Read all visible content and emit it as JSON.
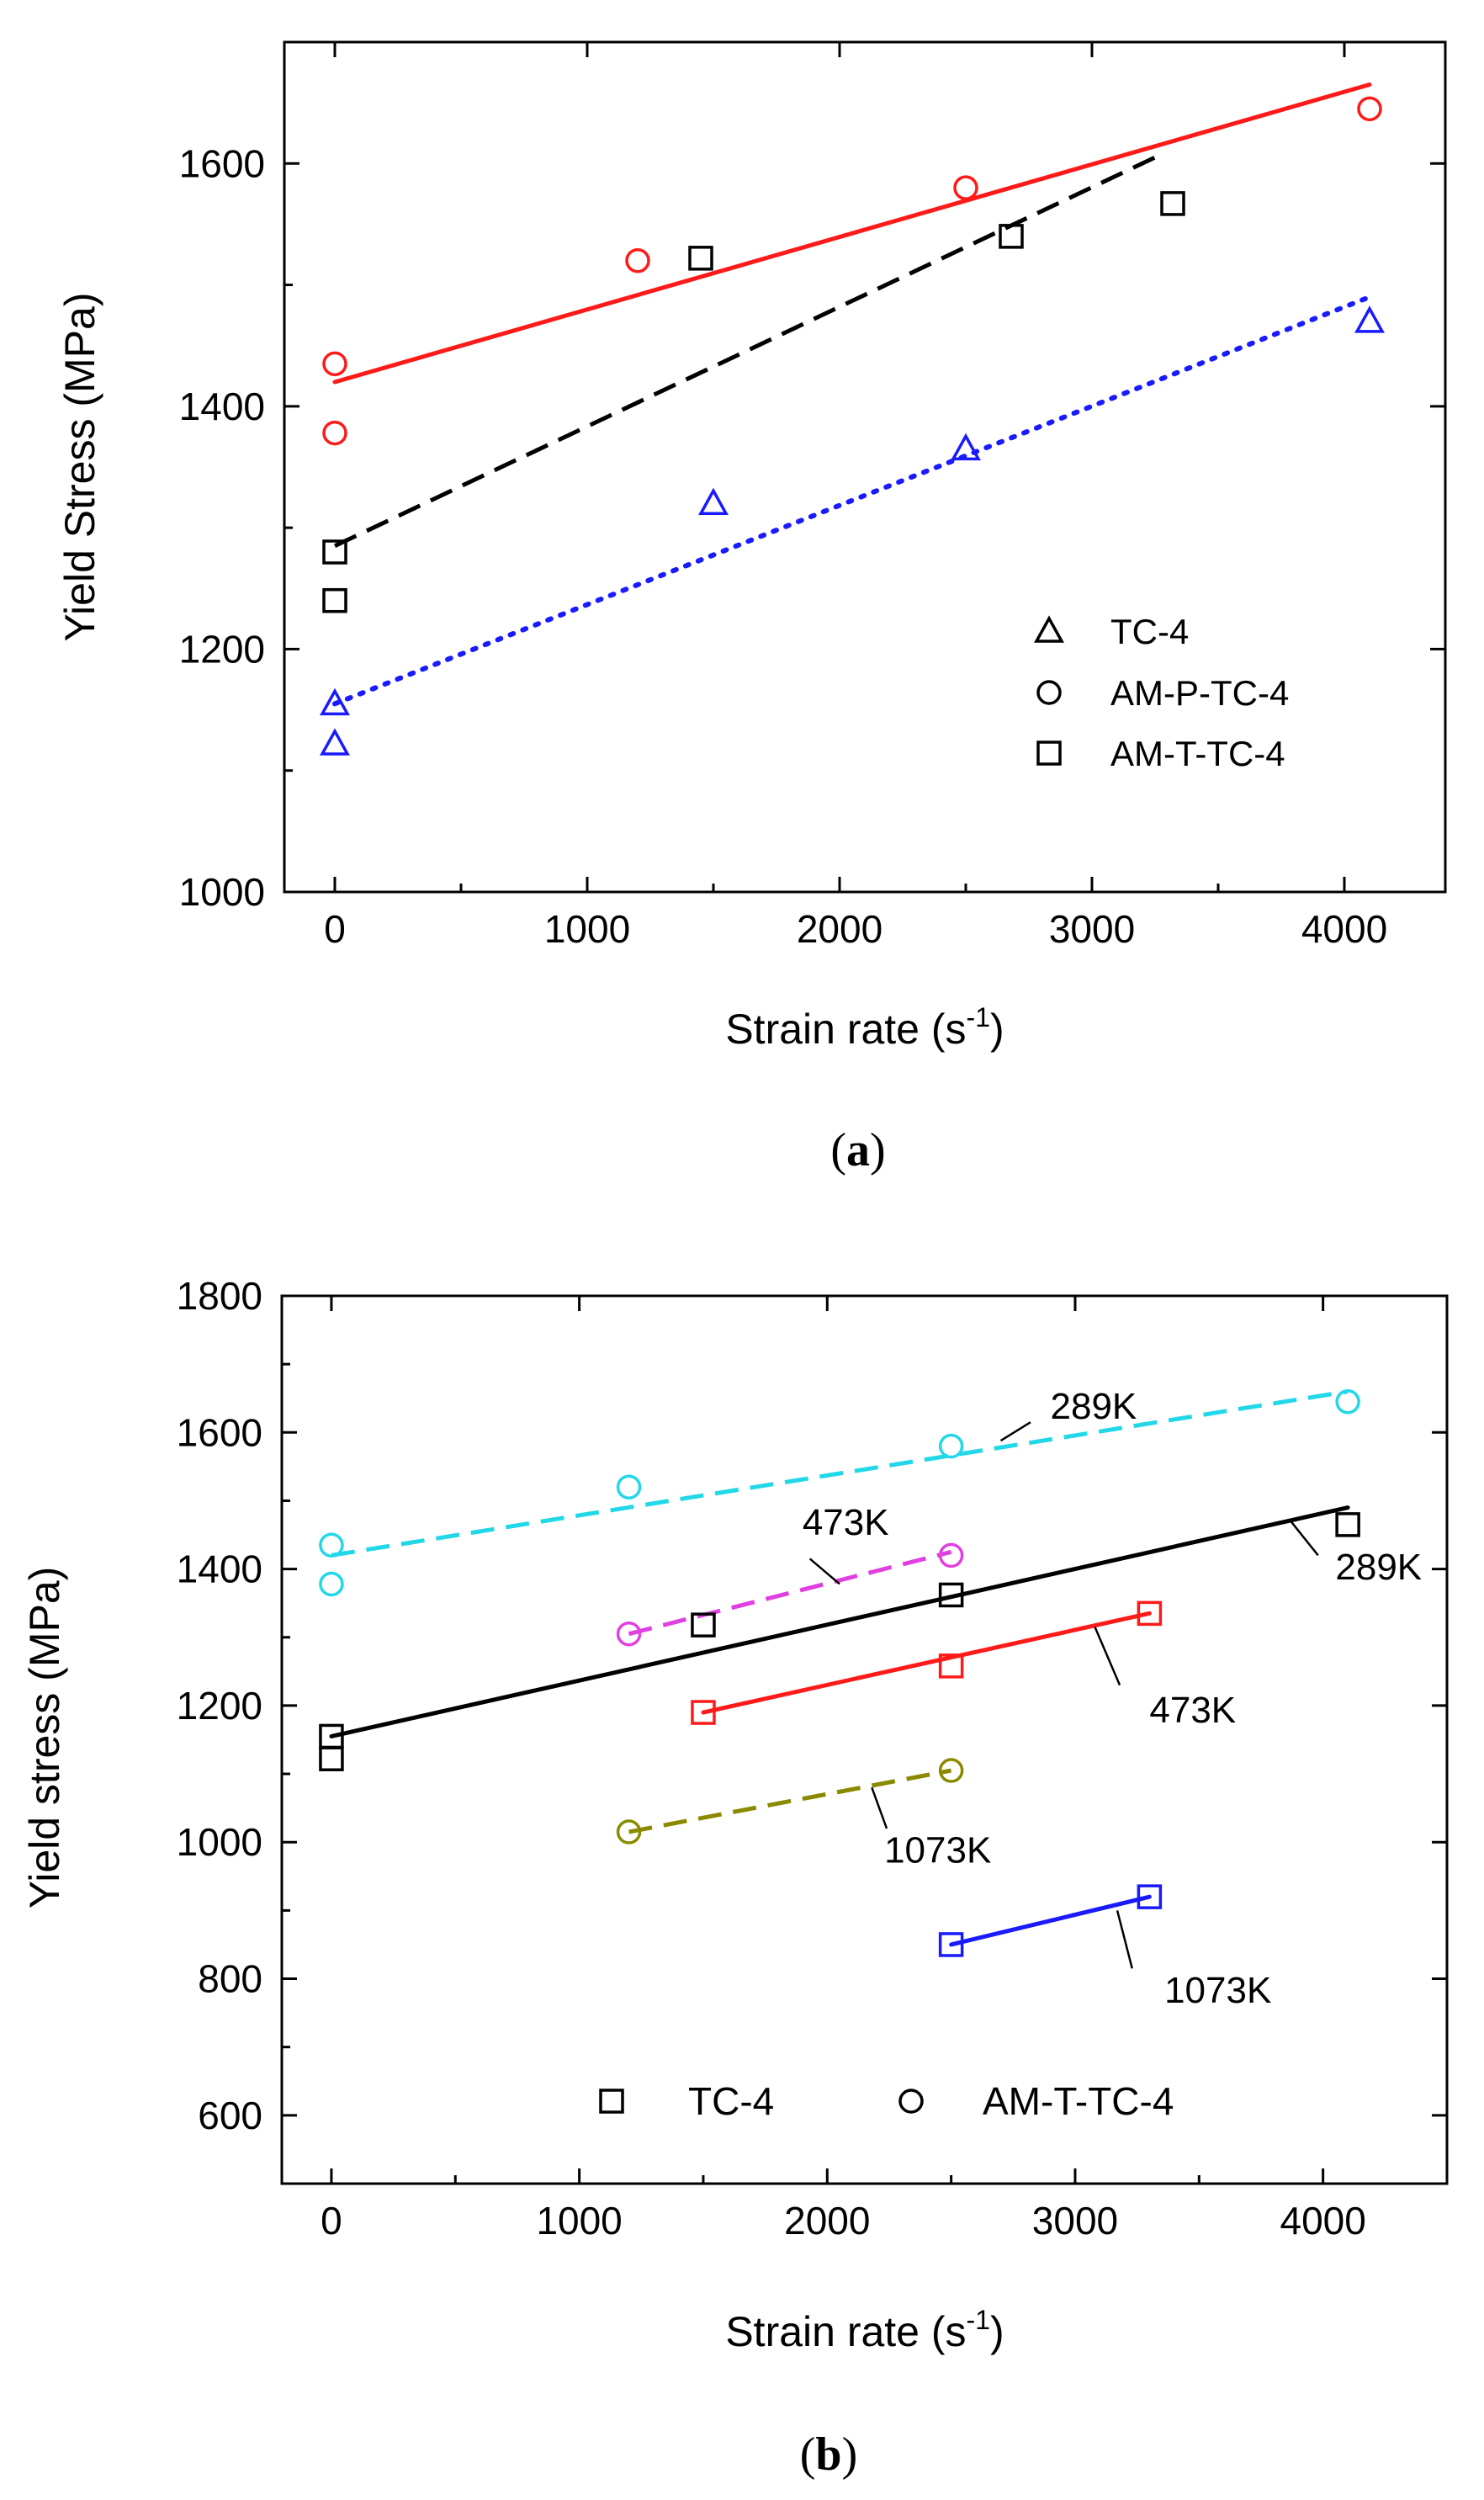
{
  "chart_data": [
    {
      "panel": "a",
      "type": "scatter",
      "caption_open": "(",
      "caption_letter": "a",
      "caption_close": ")",
      "xlabel": "Strain rate (s",
      "xlabel_sup": "-1",
      "xlabel_close": ")",
      "ylabel": "Yield Stress (MPa)",
      "xlim": [
        -200,
        4400
      ],
      "ylim": [
        1000,
        1700
      ],
      "xticks": [
        0,
        1000,
        2000,
        3000,
        4000
      ],
      "yticks": [
        1000,
        1200,
        1400,
        1600
      ],
      "legend_position": "lower-right",
      "series": [
        {
          "name": "TC-4",
          "marker": "triangle",
          "color": "#1a1aff",
          "line_style": "dotted",
          "points": [
            [
              0,
              1155
            ],
            [
              0,
              1122
            ],
            [
              1500,
              1320
            ],
            [
              2500,
              1365
            ],
            [
              4100,
              1470
            ]
          ],
          "fit": [
            [
              0,
              1155
            ],
            [
              4100,
              1490
            ]
          ]
        },
        {
          "name": "AM-P-TC-4",
          "marker": "circle",
          "color": "#ff1a1a",
          "line_style": "solid",
          "points": [
            [
              0,
              1435
            ],
            [
              0,
              1378
            ],
            [
              1200,
              1520
            ],
            [
              2500,
              1580
            ],
            [
              4100,
              1645
            ]
          ],
          "fit": [
            [
              0,
              1420
            ],
            [
              4100,
              1665
            ]
          ]
        },
        {
          "name": "AM-T-TC-4",
          "marker": "square",
          "color": "#000000",
          "line_style": "dashed",
          "points": [
            [
              0,
              1280
            ],
            [
              0,
              1240
            ],
            [
              1450,
              1522
            ],
            [
              2680,
              1540
            ],
            [
              3320,
              1567
            ]
          ],
          "fit": [
            [
              0,
              1285
            ],
            [
              3250,
              1605
            ]
          ]
        }
      ]
    },
    {
      "panel": "b",
      "type": "scatter",
      "caption_open": "(",
      "caption_letter": "b",
      "caption_close": ")",
      "xlabel": "Strain rate (s",
      "xlabel_sup": "-1",
      "xlabel_close": ")",
      "ylabel": "Yield stress (MPa)",
      "xlim": [
        -200,
        4500
      ],
      "ylim": [
        500,
        1800
      ],
      "xticks": [
        0,
        1000,
        2000,
        3000,
        4000
      ],
      "yticks": [
        600,
        800,
        1000,
        1200,
        1400,
        1600,
        1800
      ],
      "legend": [
        {
          "name": "TC-4",
          "marker": "square"
        },
        {
          "name": "AM-T-TC-4",
          "marker": "circle"
        }
      ],
      "series": [
        {
          "material": "AM-T-TC-4",
          "label": "289K",
          "marker": "circle",
          "color": "#22d8e8",
          "line_style": "dashed",
          "points": [
            [
              0,
              1435
            ],
            [
              0,
              1378
            ],
            [
              1200,
              1520
            ],
            [
              2500,
              1580
            ],
            [
              4100,
              1645
            ]
          ],
          "fit": [
            [
              0,
              1420
            ],
            [
              4100,
              1660
            ]
          ],
          "label_anchor": [
            2900,
            1620
          ],
          "leader": [
            [
              2700,
              1588
            ],
            [
              2820,
              1615
            ]
          ]
        },
        {
          "material": "AM-T-TC-4",
          "label": "473K",
          "marker": "circle",
          "color": "#e040e0",
          "line_style": "dashed",
          "points": [
            [
              1200,
              1305
            ],
            [
              2500,
              1420
            ]
          ],
          "fit": [
            [
              1200,
              1305
            ],
            [
              2500,
              1425
            ]
          ],
          "label_anchor": [
            1900,
            1450
          ],
          "leader": [
            [
              2050,
              1378
            ],
            [
              1930,
              1415
            ]
          ]
        },
        {
          "material": "AM-T-TC-4",
          "label": "1073K",
          "marker": "circle",
          "color": "#8a8a00",
          "line_style": "dashed",
          "points": [
            [
              1200,
              1015
            ],
            [
              2500,
              1105
            ]
          ],
          "fit": [
            [
              1200,
              1015
            ],
            [
              2500,
              1105
            ]
          ],
          "label_anchor": [
            2230,
            970
          ],
          "leader": [
            [
              2180,
              1080
            ],
            [
              2240,
              1020
            ]
          ]
        },
        {
          "material": "TC-4",
          "label": "289K",
          "marker": "square",
          "color": "#000000",
          "line_style": "solid",
          "points": [
            [
              0,
              1155
            ],
            [
              0,
              1122
            ],
            [
              1500,
              1318
            ],
            [
              2500,
              1362
            ],
            [
              4100,
              1465
            ]
          ],
          "fit": [
            [
              0,
              1155
            ],
            [
              4100,
              1490
            ]
          ],
          "label_anchor": [
            4050,
            1385
          ],
          "leader": [
            [
              3870,
              1470
            ],
            [
              3980,
              1420
            ]
          ]
        },
        {
          "material": "TC-4",
          "label": "473K",
          "marker": "square",
          "color": "#ff1a1a",
          "line_style": "solid",
          "points": [
            [
              1500,
              1190
            ],
            [
              2500,
              1258
            ],
            [
              3300,
              1335
            ]
          ],
          "fit": [
            [
              1500,
              1190
            ],
            [
              3300,
              1335
            ]
          ],
          "label_anchor": [
            3300,
            1175
          ],
          "leader": [
            [
              3080,
              1315
            ],
            [
              3180,
              1230
            ]
          ]
        },
        {
          "material": "TC-4",
          "label": "1073K",
          "marker": "square",
          "color": "#1a1aff",
          "line_style": "solid",
          "points": [
            [
              2500,
              850
            ],
            [
              3300,
              920
            ]
          ],
          "fit": [
            [
              2500,
              850
            ],
            [
              3300,
              920
            ]
          ],
          "label_anchor": [
            3360,
            765
          ],
          "leader": [
            [
              3170,
              900
            ],
            [
              3230,
              815
            ]
          ]
        }
      ]
    }
  ]
}
